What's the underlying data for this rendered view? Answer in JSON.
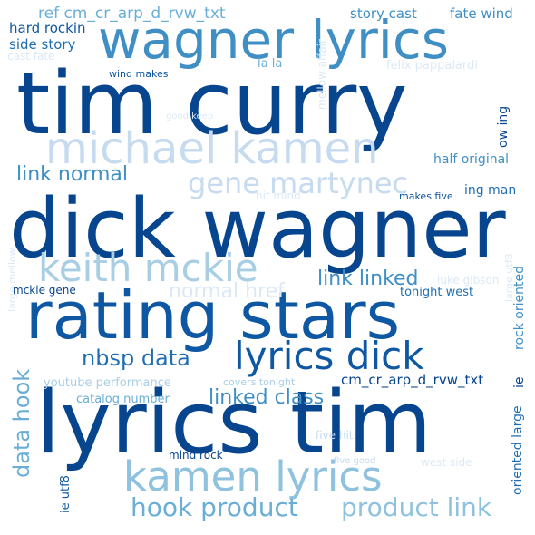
{
  "words": [
    {
      "text": "tim curry",
      "color": "#08458f"
    },
    {
      "text": "dick wagner",
      "color": "#08458f"
    },
    {
      "text": "rating stars",
      "color": "#0e57a2"
    },
    {
      "text": "lyrics tim",
      "color": "#08458f"
    },
    {
      "text": "wagner lyrics",
      "color": "#3f8fc5"
    },
    {
      "text": "michael kamen",
      "color": "#c6dbef"
    },
    {
      "text": "keith mckie",
      "color": "#a8cee4"
    },
    {
      "text": "kamen lyrics",
      "color": "#8fc2de"
    },
    {
      "text": "lyrics dick",
      "color": "#0e57a2"
    },
    {
      "text": "gene martynec",
      "color": "#c6dbef"
    },
    {
      "text": "hook product",
      "color": "#6aaed6"
    },
    {
      "text": "product link",
      "color": "#8fc2de"
    },
    {
      "text": "nbsp data",
      "color": "#1f6eb3"
    },
    {
      "text": "linked class",
      "color": "#3f8fc5"
    },
    {
      "text": "link normal",
      "color": "#3f8fc5"
    },
    {
      "text": "link linked",
      "color": "#3f8fc5"
    },
    {
      "text": "data hook",
      "color": "#6aaed6"
    },
    {
      "text": "normal href",
      "color": "#dbe9f6"
    },
    {
      "text": "ref cm_cr_arp_d_rvw_txt",
      "color": "#6aaed6"
    },
    {
      "text": "story cast",
      "color": "#3f8fc5"
    },
    {
      "text": "fate wind",
      "color": "#3f8fc5"
    },
    {
      "text": "hard rockin",
      "color": "#0e57a2"
    },
    {
      "text": "side story",
      "color": "#1f6eb3"
    },
    {
      "text": "cast fate",
      "color": "#dbe9f6"
    },
    {
      "text": "wind makes",
      "color": "#0e57a2"
    },
    {
      "text": "la la",
      "color": "#6aaed6"
    },
    {
      "text": "felix pappalardi",
      "color": "#dbe9f6"
    },
    {
      "text": "mellow affair",
      "color": "#dbe9f6"
    },
    {
      "text": "good keep",
      "color": "#dbe9f6"
    },
    {
      "text": "ow ing",
      "color": "#08458f"
    },
    {
      "text": "half original",
      "color": "#3f8fc5"
    },
    {
      "text": "ing man",
      "color": "#1f6eb3"
    },
    {
      "text": "hit mind",
      "color": "#dbe9f6"
    },
    {
      "text": "makes five",
      "color": "#0e57a2"
    },
    {
      "text": "luke gibson",
      "color": "#dbe9f6"
    },
    {
      "text": "large mellow",
      "color": "#dbe9f6"
    },
    {
      "text": "mckie gene",
      "color": "#08458f"
    },
    {
      "text": "tonight west",
      "color": "#1f6eb3"
    },
    {
      "text": "rock oriented",
      "color": "#3f8fc5"
    },
    {
      "text": "large utf8",
      "color": "#dbe9f6"
    },
    {
      "text": "youtube performance",
      "color": "#a8cee4"
    },
    {
      "text": "covers tonight",
      "color": "#a8cee4"
    },
    {
      "text": "cm_cr_arp_d_rvw_txt",
      "color": "#08458f"
    },
    {
      "text": "catalog number",
      "color": "#6aaed6"
    },
    {
      "text": "oriented large",
      "color": "#1f6eb3"
    },
    {
      "text": "ie",
      "color": "#08458f"
    },
    {
      "text": "five hit",
      "color": "#c6dbef"
    },
    {
      "text": "mind rock",
      "color": "#08458f"
    },
    {
      "text": "five good",
      "color": "#c6dbef"
    },
    {
      "text": "west side",
      "color": "#dbe9f6"
    },
    {
      "text": "ie utf8",
      "color": "#0e57a2"
    }
  ]
}
